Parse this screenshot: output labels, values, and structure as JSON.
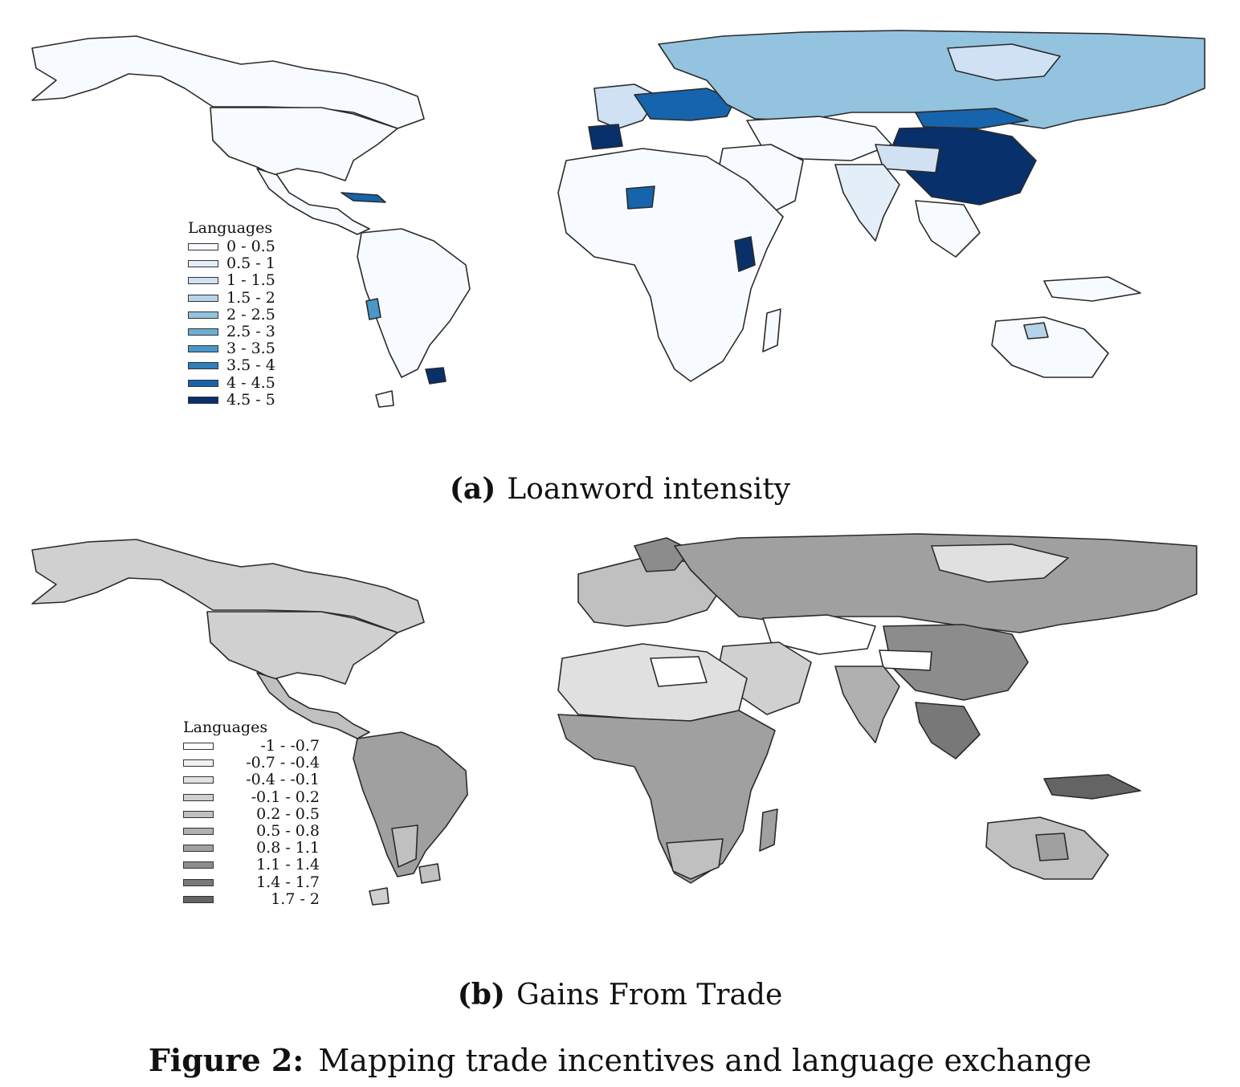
{
  "panels": [
    {
      "id": "a",
      "caption_letter": "(a)",
      "caption_text": "Loanword intensity",
      "legend_title": "Languages",
      "legend": [
        {
          "label": "0 - 0.5",
          "color": "#f7fbff"
        },
        {
          "label": "0.5 - 1",
          "color": "#e3eef9"
        },
        {
          "label": "1 - 1.5",
          "color": "#cfe1f2"
        },
        {
          "label": "1.5 - 2",
          "color": "#b5d4e9"
        },
        {
          "label": "2 - 2.5",
          "color": "#93c3df"
        },
        {
          "label": "2.5 - 3",
          "color": "#6daed5"
        },
        {
          "label": "3 - 3.5",
          "color": "#4b97c9"
        },
        {
          "label": "3.5 - 4",
          "color": "#2f7ebc"
        },
        {
          "label": "4 - 4.5",
          "color": "#1664ab"
        },
        {
          "label": "4.5 - 5",
          "color": "#08306b"
        }
      ]
    },
    {
      "id": "b",
      "caption_letter": "(b)",
      "caption_text": "Gains From Trade",
      "legend_title": "Languages",
      "legend": [
        {
          "label": "-1 - -0.7",
          "color": "#ffffff"
        },
        {
          "label": "-0.7 - -0.4",
          "color": "#f0f0f0"
        },
        {
          "label": "-0.4 - -0.1",
          "color": "#e0e0e0"
        },
        {
          "label": "-0.1 - 0.2",
          "color": "#d0d0d0"
        },
        {
          "label": "0.2 - 0.5",
          "color": "#c0c0c0"
        },
        {
          "label": "0.5 - 0.8",
          "color": "#b0b0b0"
        },
        {
          "label": "0.8 - 1.1",
          "color": "#a0a0a0"
        },
        {
          "label": "1.1 - 1.4",
          "color": "#8c8c8c"
        },
        {
          "label": "1.4 - 1.7",
          "color": "#787878"
        },
        {
          "label": "1.7 - 2",
          "color": "#646464"
        }
      ]
    }
  ],
  "figure_caption": {
    "label": "Figure 2:",
    "text": "Mapping trade incentives and language exchange"
  }
}
